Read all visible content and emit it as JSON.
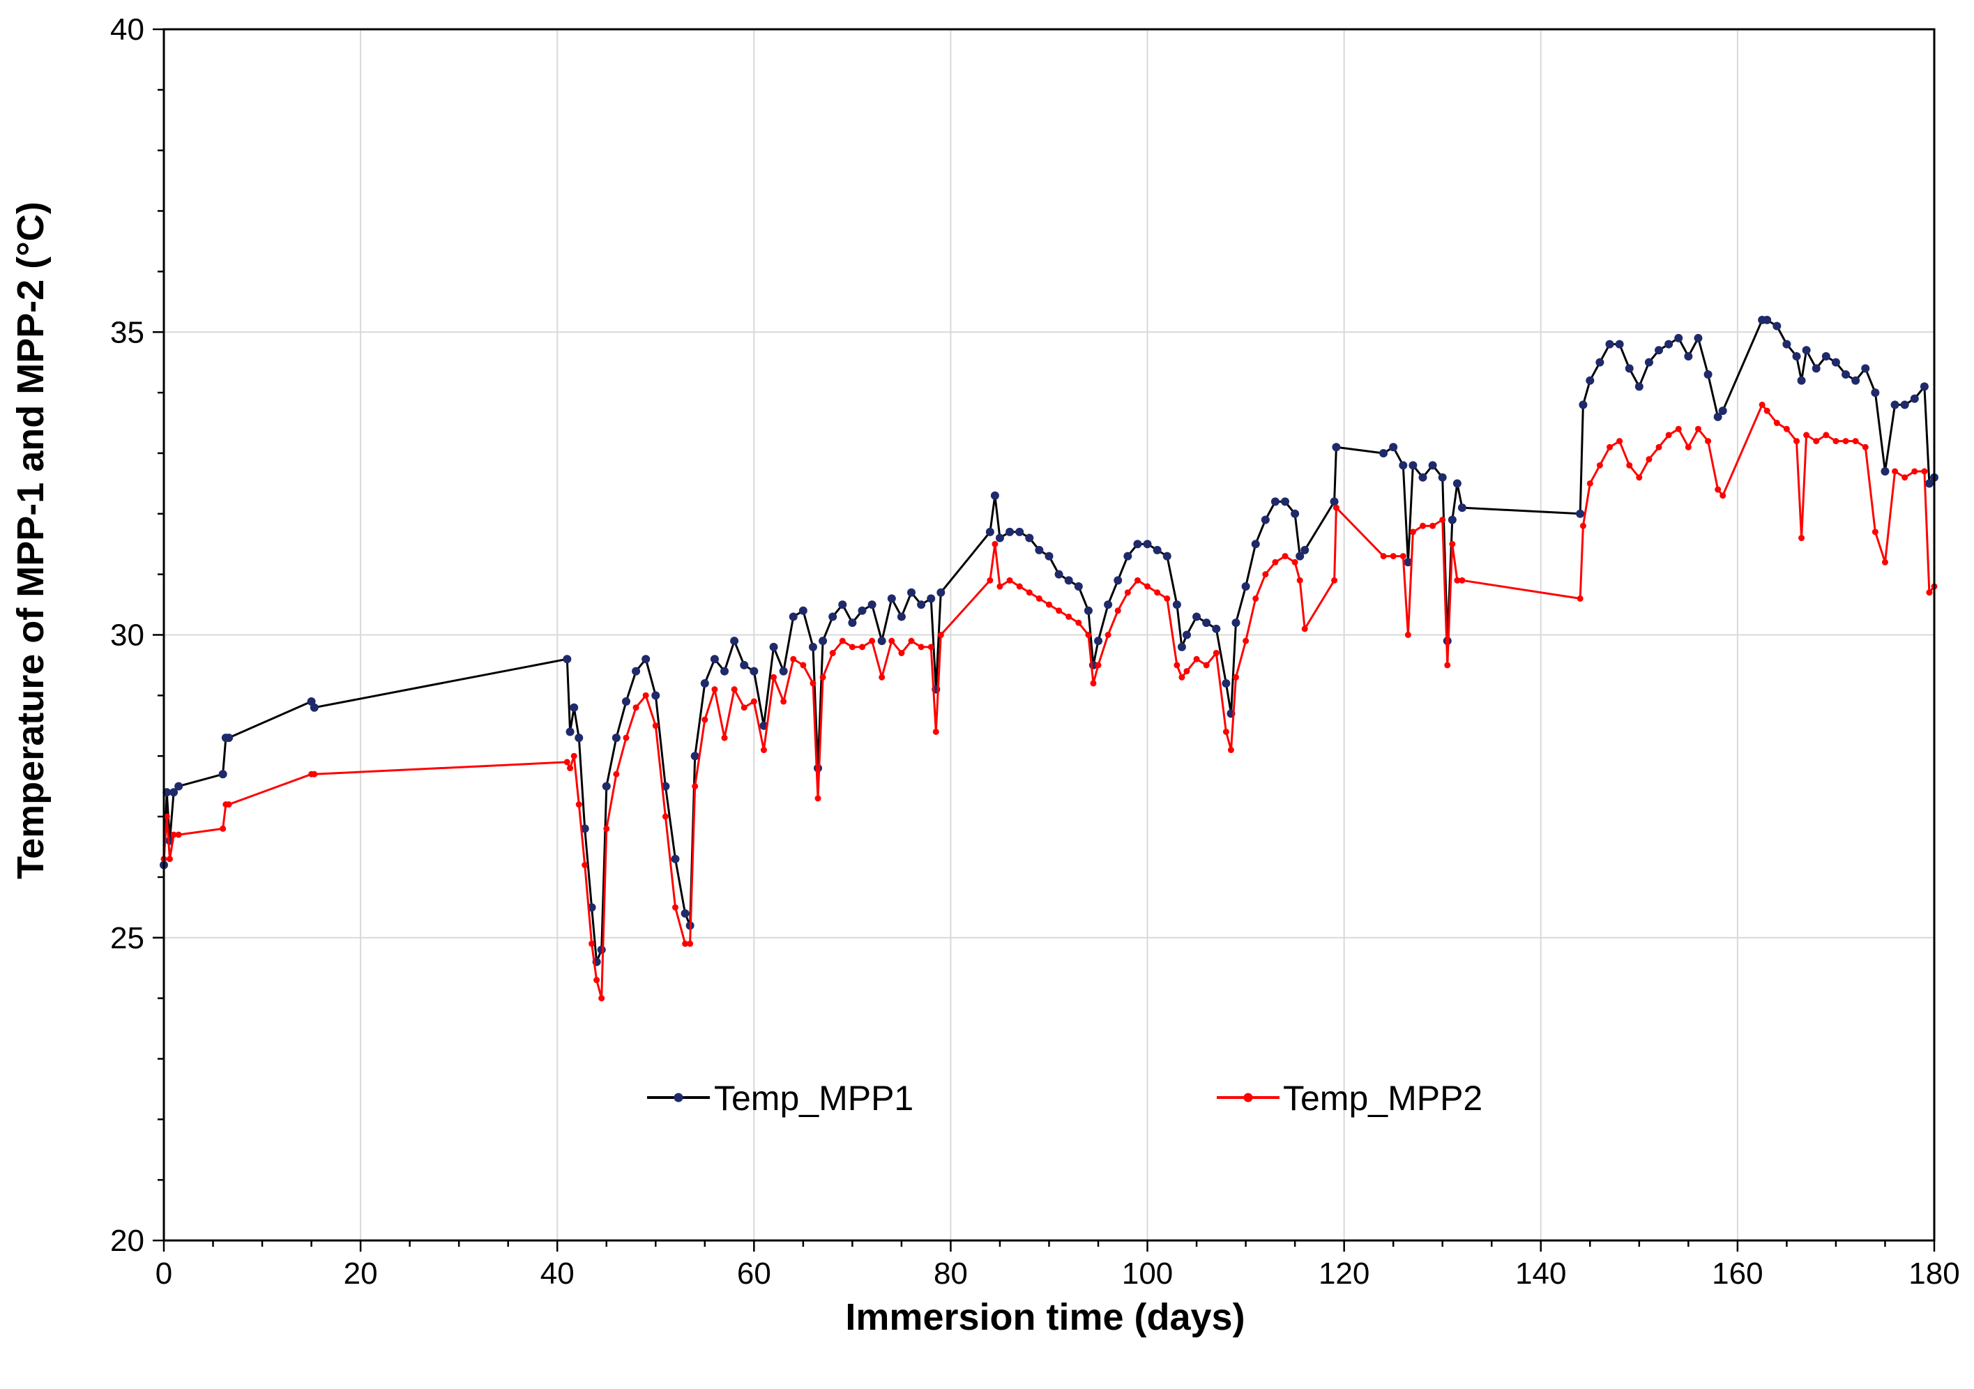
{
  "chart_data": {
    "type": "line",
    "title": "",
    "xlabel": "Immersion time (days)",
    "ylabel": "Temperature of MPP-1 and MPP-2 (°C)",
    "xlim": [
      0,
      180
    ],
    "ylim": [
      20,
      40
    ],
    "xticks": [
      0,
      20,
      40,
      60,
      80,
      100,
      120,
      140,
      160,
      180
    ],
    "yticks": [
      20,
      25,
      30,
      35,
      40
    ],
    "x_tick_labels": [
      "0",
      "20",
      "40",
      "60",
      "80",
      "100",
      "120",
      "140",
      "160",
      "180"
    ],
    "y_tick_labels": [
      "20",
      "25",
      "30",
      "35",
      "40"
    ],
    "grid": true,
    "legend_position": "lower-center",
    "series": [
      {
        "name": "Temp_MPP1",
        "color": "#1f2a6b",
        "line_color": "#000000",
        "x": [
          0,
          0.3,
          0.6,
          1,
          1.5,
          6,
          6.3,
          6.6,
          15,
          15.3,
          41,
          41.3,
          41.7,
          42.2,
          42.8,
          43.5,
          44,
          44.5,
          45,
          46,
          47,
          48,
          49,
          50,
          51,
          52,
          53,
          53.5,
          54,
          55,
          56,
          57,
          58,
          59,
          60,
          61,
          62,
          63,
          64,
          65,
          66,
          66.5,
          67,
          68,
          69,
          70,
          71,
          72,
          73,
          74,
          75,
          76,
          77,
          78,
          78.5,
          79,
          84,
          84.5,
          85,
          86,
          87,
          88,
          89,
          90,
          91,
          92,
          93,
          94,
          94.5,
          95,
          96,
          97,
          98,
          99,
          100,
          101,
          102,
          103,
          103.5,
          104,
          105,
          106,
          107,
          108,
          108.5,
          109,
          110,
          111,
          112,
          113,
          114,
          115,
          115.5,
          116,
          119,
          119.2,
          124,
          125,
          126,
          126.5,
          127,
          128,
          129,
          130,
          130.5,
          131,
          131.5,
          132,
          144,
          144.3,
          145,
          146,
          147,
          148,
          149,
          150,
          151,
          152,
          153,
          154,
          155,
          156,
          157,
          158,
          158.5,
          162.5,
          163,
          164,
          165,
          166,
          166.5,
          167,
          168,
          169,
          170,
          171,
          172,
          173,
          174,
          175,
          176,
          177,
          178,
          179,
          179.5,
          180
        ],
        "y": [
          26.2,
          27.4,
          26.6,
          27.4,
          27.5,
          27.7,
          28.3,
          28.3,
          28.9,
          28.8,
          29.6,
          28.4,
          28.8,
          28.3,
          26.8,
          25.5,
          24.6,
          24.8,
          27.5,
          28.3,
          28.9,
          29.4,
          29.6,
          29.0,
          27.5,
          26.3,
          25.4,
          25.2,
          28.0,
          29.2,
          29.6,
          29.4,
          29.9,
          29.5,
          29.4,
          28.5,
          29.8,
          29.4,
          30.3,
          30.4,
          29.8,
          27.8,
          29.9,
          30.3,
          30.5,
          30.2,
          30.4,
          30.5,
          29.9,
          30.6,
          30.3,
          30.7,
          30.5,
          30.6,
          29.1,
          30.7,
          31.7,
          32.3,
          31.6,
          31.7,
          31.7,
          31.6,
          31.4,
          31.3,
          31.0,
          30.9,
          30.8,
          30.4,
          29.5,
          29.9,
          30.5,
          30.9,
          31.3,
          31.5,
          31.5,
          31.4,
          31.3,
          30.5,
          29.8,
          30.0,
          30.3,
          30.2,
          30.1,
          29.2,
          28.7,
          30.2,
          30.8,
          31.5,
          31.9,
          32.2,
          32.2,
          32.0,
          31.3,
          31.4,
          32.2,
          33.1,
          33.0,
          33.1,
          32.8,
          31.2,
          32.8,
          32.6,
          32.8,
          32.6,
          29.9,
          31.9,
          32.5,
          32.1,
          32.0,
          33.8,
          34.2,
          34.5,
          34.8,
          34.8,
          34.4,
          34.1,
          34.5,
          34.7,
          34.8,
          34.9,
          34.6,
          34.9,
          34.3,
          33.6,
          33.7,
          35.2,
          35.2,
          35.1,
          34.8,
          34.6,
          34.2,
          34.7,
          34.4,
          34.6,
          34.5,
          34.3,
          34.2,
          34.4,
          34.0,
          32.7,
          33.8,
          33.8,
          33.9,
          34.1,
          32.5,
          32.6
        ]
      },
      {
        "name": "Temp_MPP2",
        "color": "#ff0000",
        "line_color": "#ff0000",
        "x": [
          0,
          0.3,
          0.6,
          1,
          1.5,
          6,
          6.3,
          6.6,
          15,
          15.3,
          41,
          41.3,
          41.7,
          42.2,
          42.8,
          43.5,
          44,
          44.5,
          45,
          46,
          47,
          48,
          49,
          50,
          51,
          52,
          53,
          53.5,
          54,
          55,
          56,
          57,
          58,
          59,
          60,
          61,
          62,
          63,
          64,
          65,
          66,
          66.5,
          67,
          68,
          69,
          70,
          71,
          72,
          73,
          74,
          75,
          76,
          77,
          78,
          78.5,
          79,
          84,
          84.5,
          85,
          86,
          87,
          88,
          89,
          90,
          91,
          92,
          93,
          94,
          94.5,
          95,
          96,
          97,
          98,
          99,
          100,
          101,
          102,
          103,
          103.5,
          104,
          105,
          106,
          107,
          108,
          108.5,
          109,
          110,
          111,
          112,
          113,
          114,
          115,
          115.5,
          116,
          119,
          119.2,
          124,
          125,
          126,
          126.5,
          127,
          128,
          129,
          130,
          130.5,
          131,
          131.5,
          132,
          144,
          144.3,
          145,
          146,
          147,
          148,
          149,
          150,
          151,
          152,
          153,
          154,
          155,
          156,
          157,
          158,
          158.5,
          162.5,
          163,
          164,
          165,
          166,
          166.5,
          167,
          168,
          169,
          170,
          171,
          172,
          173,
          174,
          175,
          176,
          177,
          178,
          179,
          179.5,
          180
        ],
        "y": [
          26.3,
          27.0,
          26.3,
          26.7,
          26.7,
          26.8,
          27.2,
          27.2,
          27.7,
          27.7,
          27.9,
          27.8,
          28.0,
          27.2,
          26.2,
          24.9,
          24.3,
          24.0,
          26.8,
          27.7,
          28.3,
          28.8,
          29.0,
          28.5,
          27.0,
          25.5,
          24.9,
          24.9,
          27.5,
          28.6,
          29.1,
          28.3,
          29.1,
          28.8,
          28.9,
          28.1,
          29.3,
          28.9,
          29.6,
          29.5,
          29.2,
          27.3,
          29.3,
          29.7,
          29.9,
          29.8,
          29.8,
          29.9,
          29.3,
          29.9,
          29.7,
          29.9,
          29.8,
          29.8,
          28.4,
          30.0,
          30.9,
          31.5,
          30.8,
          30.9,
          30.8,
          30.7,
          30.6,
          30.5,
          30.4,
          30.3,
          30.2,
          30.0,
          29.2,
          29.5,
          30.0,
          30.4,
          30.7,
          30.9,
          30.8,
          30.7,
          30.6,
          29.5,
          29.3,
          29.4,
          29.6,
          29.5,
          29.7,
          28.4,
          28.1,
          29.3,
          29.9,
          30.6,
          31.0,
          31.2,
          31.3,
          31.2,
          30.9,
          30.1,
          30.9,
          32.1,
          31.3,
          31.3,
          31.3,
          30.0,
          31.7,
          31.8,
          31.8,
          31.9,
          29.5,
          31.5,
          30.9,
          30.9,
          30.6,
          31.8,
          32.5,
          32.8,
          33.1,
          33.2,
          32.8,
          32.6,
          32.9,
          33.1,
          33.3,
          33.4,
          33.1,
          33.4,
          33.2,
          32.4,
          32.3,
          33.8,
          33.7,
          33.5,
          33.4,
          33.2,
          31.6,
          33.3,
          33.2,
          33.3,
          33.2,
          33.2,
          33.2,
          33.1,
          31.7,
          31.2,
          32.7,
          32.6,
          32.7,
          32.7,
          30.7,
          30.8
        ]
      }
    ]
  }
}
